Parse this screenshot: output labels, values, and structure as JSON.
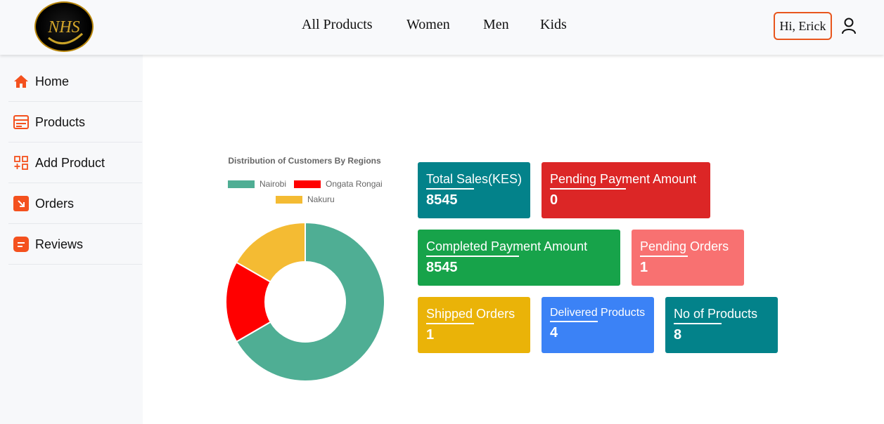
{
  "header": {
    "logo_text": "NHS",
    "nav": [
      "All Products",
      "Women",
      "Men",
      "Kids"
    ],
    "greeting": "Hi, Erick"
  },
  "sidebar": {
    "items": [
      {
        "label": "Home",
        "icon": "home-icon"
      },
      {
        "label": "Products",
        "icon": "products-icon"
      },
      {
        "label": "Add Product",
        "icon": "add-product-icon"
      },
      {
        "label": "Orders",
        "icon": "orders-icon"
      },
      {
        "label": "Reviews",
        "icon": "reviews-icon"
      }
    ],
    "accent": "#f4511e"
  },
  "chart_data": {
    "type": "pie",
    "title": "Distribution of Customers By Regions",
    "categories": [
      "Nairobi",
      "Ongata Rongai",
      "Nakuru"
    ],
    "values": [
      66.7,
      16.7,
      16.7
    ],
    "colors": [
      "#4fae94",
      "#ff0000",
      "#f4bb33"
    ],
    "legend": "top",
    "donut": true
  },
  "cards": [
    {
      "title": "Total Sales(KES)",
      "value": "8545",
      "color": "#03828a"
    },
    {
      "title": "Pending Payment Amount",
      "value": "0",
      "color": "#dc2626"
    },
    {
      "title": "Completed Payment Amount",
      "value": "8545",
      "color": "#17a34a"
    },
    {
      "title": "Pending Orders",
      "value": "1",
      "color": "#f87171"
    },
    {
      "title": "Shipped Orders",
      "value": "1",
      "color": "#eab308"
    },
    {
      "title": "Delivered Products",
      "value": "4",
      "color": "#3b82f6"
    },
    {
      "title": "No of Products",
      "value": "8",
      "color": "#03828a"
    }
  ]
}
